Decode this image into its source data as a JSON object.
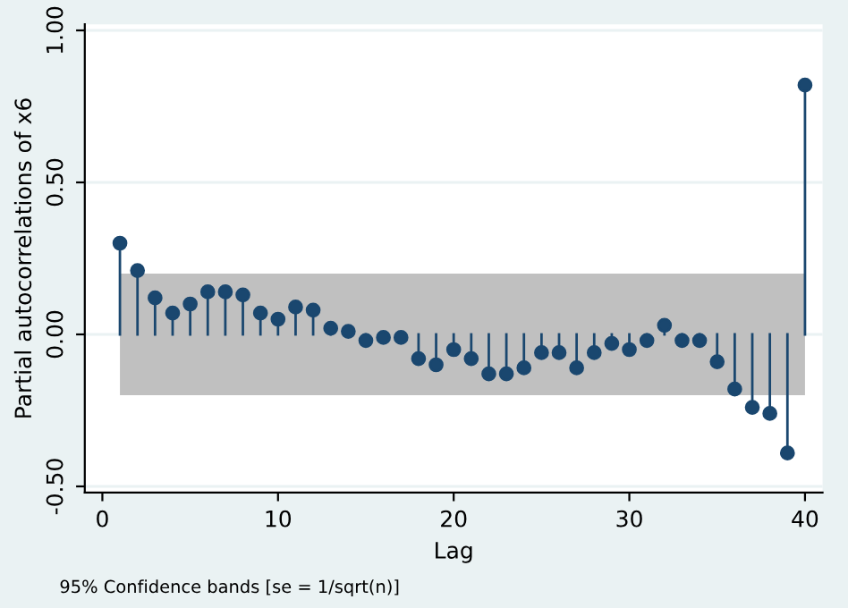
{
  "chart_data": {
    "type": "lollipop",
    "xlabel": "Lag",
    "ylabel": "Partial autocorrelations of x6",
    "annotations": [
      "95% Confidence bands [se = 1/sqrt(n)]"
    ],
    "x": [
      1,
      2,
      3,
      4,
      5,
      6,
      7,
      8,
      9,
      10,
      11,
      12,
      13,
      14,
      15,
      16,
      17,
      18,
      19,
      20,
      21,
      22,
      23,
      24,
      25,
      26,
      27,
      28,
      29,
      30,
      31,
      32,
      33,
      34,
      35,
      36,
      37,
      38,
      39,
      40
    ],
    "series": [
      {
        "color": "#1a476f",
        "values": [
          0.3,
          0.21,
          0.12,
          0.07,
          0.1,
          0.14,
          0.14,
          0.13,
          0.07,
          0.05,
          0.09,
          0.08,
          0.02,
          0.01,
          -0.02,
          -0.01,
          -0.01,
          -0.08,
          -0.1,
          -0.05,
          -0.08,
          -0.13,
          -0.13,
          -0.11,
          -0.06,
          -0.06,
          -0.11,
          -0.06,
          -0.03,
          -0.05,
          -0.02,
          0.03,
          -0.02,
          -0.02,
          -0.09,
          -0.18,
          -0.24,
          -0.26,
          -0.39,
          0.82
        ]
      }
    ],
    "bands": [
      {
        "axis": "y",
        "from": -0.2,
        "to": 0.2,
        "color": "#c0c0c0"
      }
    ],
    "xlim": [
      -1,
      41
    ],
    "ylim": [
      -0.52,
      1.02
    ],
    "xticks": [
      0,
      10,
      20,
      30,
      40
    ],
    "yticks": [
      {
        "value": -0.5,
        "label": "-0.50"
      },
      {
        "value": 0,
        "label": "0.00"
      },
      {
        "value": 0.5,
        "label": "0.50"
      },
      {
        "value": 1,
        "label": "1.00"
      }
    ],
    "grid": "y",
    "marker": "circle"
  }
}
